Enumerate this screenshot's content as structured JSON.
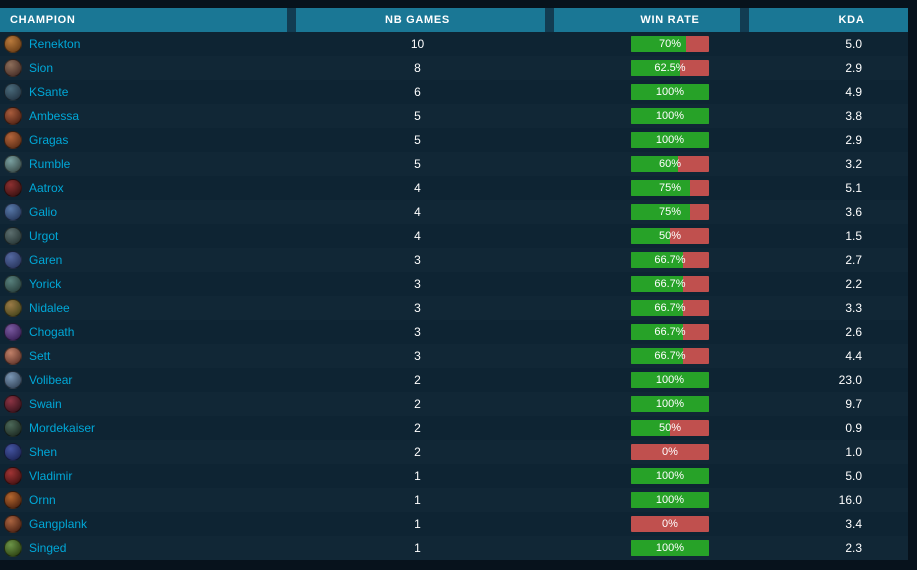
{
  "colors": {
    "page_bg": "#07121c",
    "table_bg": "#0e2433",
    "header_bg": "#1a7795",
    "header_divider": "#123c52",
    "champion_name": "#00a8d8",
    "win_green": "#27a228",
    "loss_red": "#c0504e",
    "row_text": "#ffffff"
  },
  "header": {
    "columns": [
      {
        "label": "CHAMPION"
      },
      {
        "label": "NB GAMES"
      },
      {
        "label": "WIN RATE"
      },
      {
        "label": "KDA"
      }
    ]
  },
  "rows": [
    {
      "champion": "Renekton",
      "games": "10",
      "winrate_label": "70%",
      "winrate_pct": 70,
      "kda": "5.0",
      "icon_colors": [
        "#b97a3c",
        "#5a3210"
      ]
    },
    {
      "champion": "Sion",
      "games": "8",
      "winrate_label": "62.5%",
      "winrate_pct": 62.5,
      "kda": "2.9",
      "icon_colors": [
        "#8d6e5a",
        "#39221e"
      ]
    },
    {
      "champion": "KSante",
      "games": "6",
      "winrate_label": "100%",
      "winrate_pct": 100,
      "kda": "4.9",
      "icon_colors": [
        "#4a6a7a",
        "#1c2a38"
      ]
    },
    {
      "champion": "Ambessa",
      "games": "5",
      "winrate_label": "100%",
      "winrate_pct": 100,
      "kda": "3.8",
      "icon_colors": [
        "#a85c3c",
        "#40180e"
      ]
    },
    {
      "champion": "Gragas",
      "games": "5",
      "winrate_label": "100%",
      "winrate_pct": 100,
      "kda": "2.9",
      "icon_colors": [
        "#b3643a",
        "#4c2410"
      ]
    },
    {
      "champion": "Rumble",
      "games": "5",
      "winrate_label": "60%",
      "winrate_pct": 60,
      "kda": "3.2",
      "icon_colors": [
        "#7aa0a0",
        "#2e3c3a"
      ]
    },
    {
      "champion": "Aatrox",
      "games": "4",
      "winrate_label": "75%",
      "winrate_pct": 75,
      "kda": "5.1",
      "icon_colors": [
        "#8c3030",
        "#2a0c0c"
      ]
    },
    {
      "champion": "Galio",
      "games": "4",
      "winrate_label": "75%",
      "winrate_pct": 75,
      "kda": "3.6",
      "icon_colors": [
        "#5878a8",
        "#1c2c4c"
      ]
    },
    {
      "champion": "Urgot",
      "games": "4",
      "winrate_label": "50%",
      "winrate_pct": 50,
      "kda": "1.5",
      "icon_colors": [
        "#5c6e6e",
        "#1e2c2c"
      ]
    },
    {
      "champion": "Garen",
      "games": "3",
      "winrate_label": "66.7%",
      "winrate_pct": 66.7,
      "kda": "2.7",
      "icon_colors": [
        "#5468a0",
        "#202c50"
      ]
    },
    {
      "champion": "Yorick",
      "games": "3",
      "winrate_label": "66.7%",
      "winrate_pct": 66.7,
      "kda": "2.2",
      "icon_colors": [
        "#58807c",
        "#203432"
      ]
    },
    {
      "champion": "Nidalee",
      "games": "3",
      "winrate_label": "66.7%",
      "winrate_pct": 66.7,
      "kda": "3.3",
      "icon_colors": [
        "#9a7a46",
        "#383c14"
      ]
    },
    {
      "champion": "Chogath",
      "games": "3",
      "winrate_label": "66.7%",
      "winrate_pct": 66.7,
      "kda": "2.6",
      "icon_colors": [
        "#7a5aa0",
        "#2c1448"
      ]
    },
    {
      "champion": "Sett",
      "games": "3",
      "winrate_label": "66.7%",
      "winrate_pct": 66.7,
      "kda": "4.4",
      "icon_colors": [
        "#c08068",
        "#502820"
      ]
    },
    {
      "champion": "Volibear",
      "games": "2",
      "winrate_label": "100%",
      "winrate_pct": 100,
      "kda": "23.0",
      "icon_colors": [
        "#7a96b4",
        "#263648"
      ]
    },
    {
      "champion": "Swain",
      "games": "2",
      "winrate_label": "100%",
      "winrate_pct": 100,
      "kda": "9.7",
      "icon_colors": [
        "#8c3444",
        "#260c14"
      ]
    },
    {
      "champion": "Mordekaiser",
      "games": "2",
      "winrate_label": "50%",
      "winrate_pct": 50,
      "kda": "0.9",
      "icon_colors": [
        "#4c6858",
        "#141f19"
      ]
    },
    {
      "champion": "Shen",
      "games": "2",
      "winrate_label": "0%",
      "winrate_pct": 0,
      "kda": "1.0",
      "icon_colors": [
        "#4454a0",
        "#141c48"
      ]
    },
    {
      "champion": "Vladimir",
      "games": "1",
      "winrate_label": "100%",
      "winrate_pct": 100,
      "kda": "5.0",
      "icon_colors": [
        "#a03434",
        "#340c0c"
      ]
    },
    {
      "champion": "Ornn",
      "games": "1",
      "winrate_label": "100%",
      "winrate_pct": 100,
      "kda": "16.0",
      "icon_colors": [
        "#b4662e",
        "#38160a"
      ]
    },
    {
      "champion": "Gangplank",
      "games": "1",
      "winrate_label": "0%",
      "winrate_pct": 0,
      "kda": "3.4",
      "icon_colors": [
        "#aa6440",
        "#3a160c"
      ]
    },
    {
      "champion": "Singed",
      "games": "1",
      "winrate_label": "100%",
      "winrate_pct": 100,
      "kda": "2.3",
      "icon_colors": [
        "#6c9448",
        "#223408"
      ]
    }
  ]
}
